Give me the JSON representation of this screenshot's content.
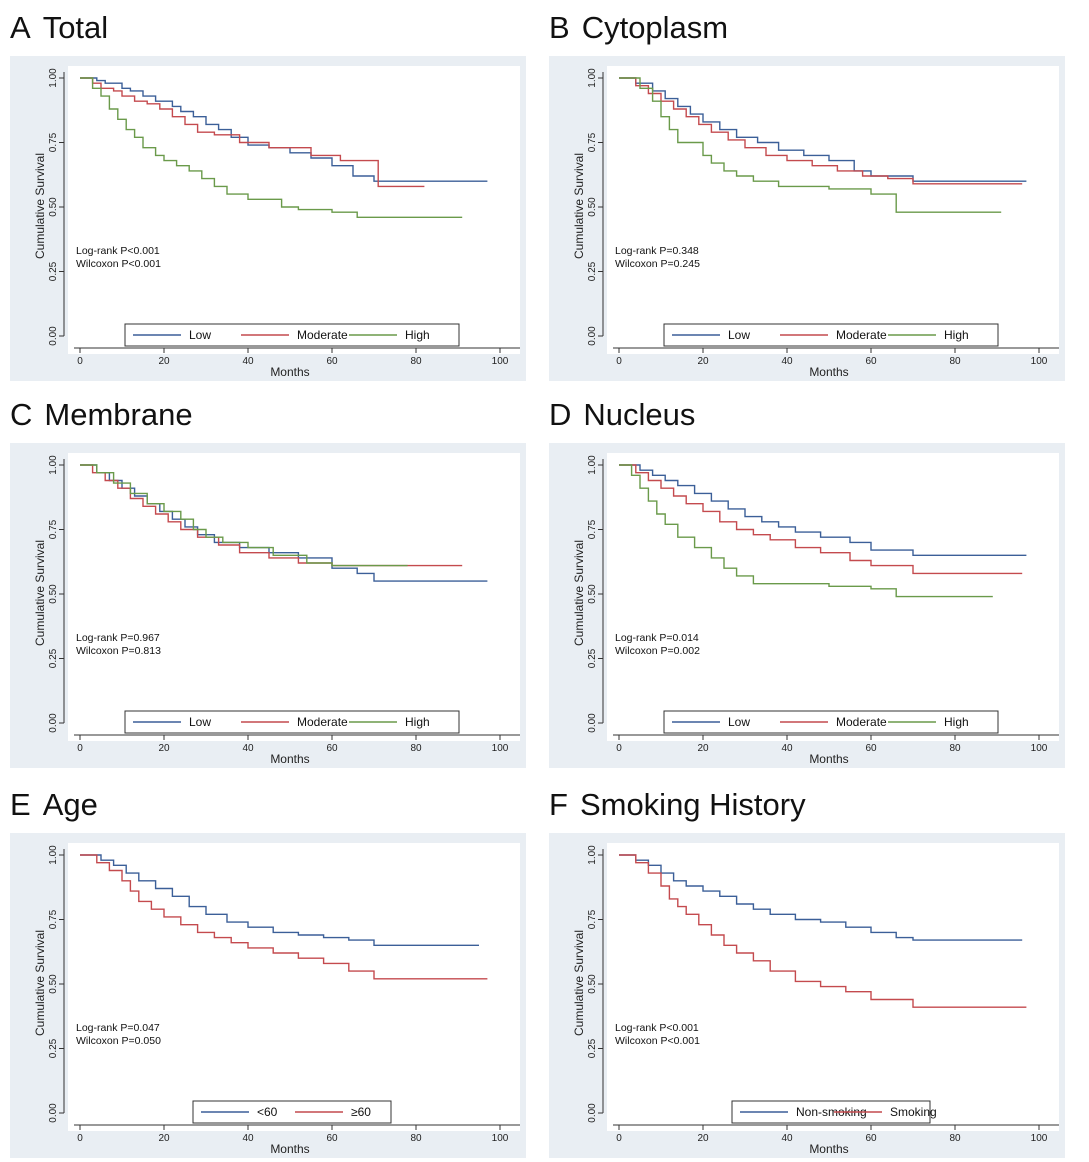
{
  "panels": [
    {
      "letter": "A",
      "title": "Total",
      "chart_data": {
        "type": "line",
        "xlabel": "Months",
        "ylabel": "Cumulative Survival",
        "xlim": [
          0,
          100
        ],
        "ylim": [
          0,
          1
        ],
        "xticks": [
          "0",
          "20",
          "40",
          "60",
          "80",
          "100"
        ],
        "yticks": [
          "0.00",
          "0.25",
          "0.50",
          "0.75",
          "1.00"
        ],
        "annotations": [
          "Log-rank  P<0.001",
          "Wilcoxon P<0.001"
        ],
        "legend_position": "bottom",
        "series": [
          {
            "name": "Low",
            "color": "#3b5f98",
            "x": [
              0,
              4,
              6,
              10,
              12,
              15,
              18,
              22,
              24,
              27,
              30,
              33,
              36,
              40,
              45,
              50,
              55,
              60,
              65,
              70,
              97
            ],
            "y": [
              1.0,
              0.99,
              0.98,
              0.96,
              0.95,
              0.93,
              0.91,
              0.89,
              0.87,
              0.85,
              0.82,
              0.8,
              0.77,
              0.74,
              0.73,
              0.71,
              0.69,
              0.66,
              0.62,
              0.6,
              0.6
            ]
          },
          {
            "name": "Moderate",
            "color": "#c44a4e",
            "x": [
              0,
              3,
              5,
              8,
              10,
              13,
              16,
              19,
              22,
              25,
              28,
              32,
              38,
              45,
              55,
              62,
              71,
              82
            ],
            "y": [
              1.0,
              0.98,
              0.96,
              0.95,
              0.93,
              0.91,
              0.9,
              0.88,
              0.85,
              0.82,
              0.79,
              0.78,
              0.75,
              0.73,
              0.7,
              0.68,
              0.58,
              0.58
            ]
          },
          {
            "name": "High",
            "color": "#6a9a4a",
            "x": [
              0,
              3,
              5,
              7,
              9,
              11,
              13,
              15,
              18,
              20,
              23,
              26,
              29,
              32,
              35,
              40,
              48,
              52,
              60,
              66,
              91
            ],
            "y": [
              1.0,
              0.96,
              0.93,
              0.88,
              0.84,
              0.8,
              0.77,
              0.73,
              0.7,
              0.68,
              0.66,
              0.64,
              0.61,
              0.58,
              0.55,
              0.53,
              0.5,
              0.49,
              0.48,
              0.46,
              0.46
            ]
          }
        ]
      }
    },
    {
      "letter": "B",
      "title": "Cytoplasm",
      "chart_data": {
        "type": "line",
        "xlabel": "Months",
        "ylabel": "Cumulative Survival",
        "xlim": [
          0,
          100
        ],
        "ylim": [
          0,
          1
        ],
        "xticks": [
          "0",
          "20",
          "40",
          "60",
          "80",
          "100"
        ],
        "yticks": [
          "0.00",
          "0.25",
          "0.50",
          "0.75",
          "1.00"
        ],
        "annotations": [
          "Log-rank  P=0.348",
          "Wilcoxon P=0.245"
        ],
        "legend_position": "bottom",
        "series": [
          {
            "name": "Low",
            "color": "#3b5f98",
            "x": [
              0,
              4,
              8,
              11,
              14,
              17,
              20,
              24,
              28,
              33,
              38,
              44,
              50,
              56,
              60,
              70,
              97
            ],
            "y": [
              1.0,
              0.98,
              0.95,
              0.92,
              0.89,
              0.86,
              0.83,
              0.8,
              0.77,
              0.75,
              0.72,
              0.7,
              0.68,
              0.64,
              0.62,
              0.6,
              0.6
            ]
          },
          {
            "name": "Moderate",
            "color": "#c44a4e",
            "x": [
              0,
              4,
              7,
              10,
              13,
              16,
              19,
              22,
              26,
              30,
              35,
              40,
              46,
              52,
              58,
              64,
              70,
              96
            ],
            "y": [
              1.0,
              0.97,
              0.94,
              0.91,
              0.88,
              0.85,
              0.82,
              0.79,
              0.76,
              0.73,
              0.7,
              0.68,
              0.66,
              0.64,
              0.62,
              0.61,
              0.59,
              0.59
            ]
          },
          {
            "name": "High",
            "color": "#6a9a4a",
            "x": [
              0,
              5,
              8,
              10,
              12,
              14,
              20,
              22,
              25,
              28,
              32,
              38,
              50,
              60,
              66,
              91
            ],
            "y": [
              1.0,
              0.96,
              0.91,
              0.85,
              0.8,
              0.75,
              0.7,
              0.67,
              0.64,
              0.62,
              0.6,
              0.58,
              0.57,
              0.55,
              0.48,
              0.48
            ]
          }
        ]
      }
    },
    {
      "letter": "C",
      "title": "Membrane",
      "chart_data": {
        "type": "line",
        "xlabel": "Months",
        "ylabel": "Cumulative Survival",
        "xlim": [
          0,
          100
        ],
        "ylim": [
          0,
          1
        ],
        "xticks": [
          "0",
          "20",
          "40",
          "60",
          "80",
          "100"
        ],
        "yticks": [
          "0.00",
          "0.25",
          "0.50",
          "0.75",
          "1.00"
        ],
        "annotations": [
          "Log-rank  P=0.967",
          "Wilcoxon P=0.813"
        ],
        "legend_position": "bottom",
        "series": [
          {
            "name": "Low",
            "color": "#3b5f98",
            "x": [
              0,
              4,
              7,
              10,
              13,
              16,
              19,
              22,
              25,
              28,
              32,
              38,
              45,
              52,
              60,
              66,
              70,
              97
            ],
            "y": [
              1.0,
              0.97,
              0.94,
              0.91,
              0.88,
              0.85,
              0.82,
              0.79,
              0.76,
              0.73,
              0.7,
              0.68,
              0.66,
              0.64,
              0.6,
              0.58,
              0.55,
              0.55
            ]
          },
          {
            "name": "Moderate",
            "color": "#c44a4e",
            "x": [
              0,
              3,
              6,
              9,
              12,
              15,
              18,
              21,
              24,
              28,
              33,
              38,
              45,
              52,
              60,
              91
            ],
            "y": [
              1.0,
              0.97,
              0.94,
              0.91,
              0.87,
              0.84,
              0.81,
              0.78,
              0.75,
              0.72,
              0.69,
              0.66,
              0.64,
              0.62,
              0.61,
              0.61
            ]
          },
          {
            "name": "High",
            "color": "#6a9a4a",
            "x": [
              0,
              4,
              8,
              12,
              16,
              20,
              24,
              27,
              30,
              34,
              40,
              46,
              54,
              60,
              78
            ],
            "y": [
              1.0,
              0.97,
              0.93,
              0.89,
              0.85,
              0.82,
              0.79,
              0.75,
              0.72,
              0.7,
              0.68,
              0.65,
              0.62,
              0.61,
              0.61
            ]
          }
        ]
      }
    },
    {
      "letter": "D",
      "title": "Nucleus",
      "chart_data": {
        "type": "line",
        "xlabel": "Months",
        "ylabel": "Cumulative Survival",
        "xlim": [
          0,
          100
        ],
        "ylim": [
          0,
          1
        ],
        "xticks": [
          "0",
          "20",
          "40",
          "60",
          "80",
          "100"
        ],
        "yticks": [
          "0.00",
          "0.25",
          "0.50",
          "0.75",
          "1.00"
        ],
        "annotations": [
          "Log-rank  P=0.014",
          "Wilcoxon P=0.002"
        ],
        "legend_position": "bottom",
        "series": [
          {
            "name": "Low",
            "color": "#3b5f98",
            "x": [
              0,
              5,
              8,
              11,
              14,
              18,
              22,
              26,
              30,
              34,
              38,
              42,
              48,
              55,
              60,
              70,
              97
            ],
            "y": [
              1.0,
              0.98,
              0.96,
              0.94,
              0.92,
              0.89,
              0.86,
              0.83,
              0.8,
              0.78,
              0.76,
              0.74,
              0.72,
              0.7,
              0.67,
              0.65,
              0.65
            ]
          },
          {
            "name": "Moderate",
            "color": "#c44a4e",
            "x": [
              0,
              4,
              7,
              10,
              13,
              16,
              20,
              24,
              28,
              32,
              36,
              42,
              48,
              55,
              60,
              70,
              96
            ],
            "y": [
              1.0,
              0.97,
              0.94,
              0.91,
              0.88,
              0.85,
              0.82,
              0.78,
              0.75,
              0.73,
              0.71,
              0.68,
              0.66,
              0.63,
              0.61,
              0.58,
              0.58
            ]
          },
          {
            "name": "High",
            "color": "#6a9a4a",
            "x": [
              0,
              3,
              5,
              7,
              9,
              11,
              14,
              18,
              22,
              25,
              28,
              32,
              40,
              50,
              60,
              66,
              89
            ],
            "y": [
              1.0,
              0.96,
              0.91,
              0.86,
              0.81,
              0.77,
              0.72,
              0.68,
              0.64,
              0.6,
              0.57,
              0.54,
              0.54,
              0.53,
              0.52,
              0.49,
              0.49
            ]
          }
        ]
      }
    },
    {
      "letter": "E",
      "title": "Age",
      "chart_data": {
        "type": "line",
        "xlabel": "Months",
        "ylabel": "Cumulative Survival",
        "xlim": [
          0,
          100
        ],
        "ylim": [
          0,
          1
        ],
        "xticks": [
          "0",
          "20",
          "40",
          "60",
          "80",
          "100"
        ],
        "yticks": [
          "0.00",
          "0.25",
          "0.50",
          "0.75",
          "1.00"
        ],
        "annotations": [
          "Log-rank  P=0.047",
          "Wilcoxon P=0.050"
        ],
        "legend_position": "bottom",
        "series": [
          {
            "name": "<60",
            "color": "#3b5f98",
            "x": [
              0,
              5,
              8,
              11,
              14,
              18,
              22,
              26,
              30,
              35,
              40,
              46,
              52,
              58,
              64,
              70,
              95
            ],
            "y": [
              1.0,
              0.98,
              0.96,
              0.93,
              0.9,
              0.87,
              0.84,
              0.8,
              0.77,
              0.74,
              0.72,
              0.7,
              0.69,
              0.68,
              0.67,
              0.65,
              0.65
            ]
          },
          {
            "name": "≥60",
            "color": "#c44a4e",
            "x": [
              0,
              4,
              7,
              10,
              12,
              14,
              17,
              20,
              24,
              28,
              32,
              36,
              40,
              46,
              52,
              58,
              64,
              70,
              97
            ],
            "y": [
              1.0,
              0.97,
              0.94,
              0.9,
              0.86,
              0.82,
              0.79,
              0.76,
              0.73,
              0.7,
              0.68,
              0.66,
              0.64,
              0.62,
              0.6,
              0.58,
              0.55,
              0.52,
              0.52
            ]
          }
        ]
      }
    },
    {
      "letter": "F",
      "title": "Smoking History",
      "chart_data": {
        "type": "line",
        "xlabel": "Months",
        "ylabel": "Cumulative Survival",
        "xlim": [
          0,
          100
        ],
        "ylim": [
          0,
          1
        ],
        "xticks": [
          "0",
          "20",
          "40",
          "60",
          "80",
          "100"
        ],
        "yticks": [
          "0.00",
          "0.25",
          "0.50",
          "0.75",
          "1.00"
        ],
        "annotations": [
          "Log-rank  P<0.001",
          "Wilcoxon P<0.001"
        ],
        "legend_position": "bottom",
        "series": [
          {
            "name": "Non-smoking",
            "color": "#3b5f98",
            "x": [
              0,
              4,
              7,
              10,
              13,
              16,
              20,
              24,
              28,
              32,
              36,
              42,
              48,
              54,
              60,
              66,
              70,
              96
            ],
            "y": [
              1.0,
              0.98,
              0.96,
              0.93,
              0.9,
              0.88,
              0.86,
              0.84,
              0.81,
              0.79,
              0.77,
              0.75,
              0.74,
              0.72,
              0.7,
              0.68,
              0.67,
              0.67
            ]
          },
          {
            "name": "Smoking",
            "color": "#c44a4e",
            "x": [
              0,
              4,
              7,
              10,
              12,
              14,
              16,
              19,
              22,
              25,
              28,
              32,
              36,
              42,
              48,
              54,
              60,
              70,
              97
            ],
            "y": [
              1.0,
              0.97,
              0.93,
              0.88,
              0.83,
              0.8,
              0.77,
              0.73,
              0.69,
              0.65,
              0.62,
              0.59,
              0.55,
              0.51,
              0.49,
              0.47,
              0.44,
              0.41,
              0.41
            ]
          }
        ]
      }
    }
  ]
}
